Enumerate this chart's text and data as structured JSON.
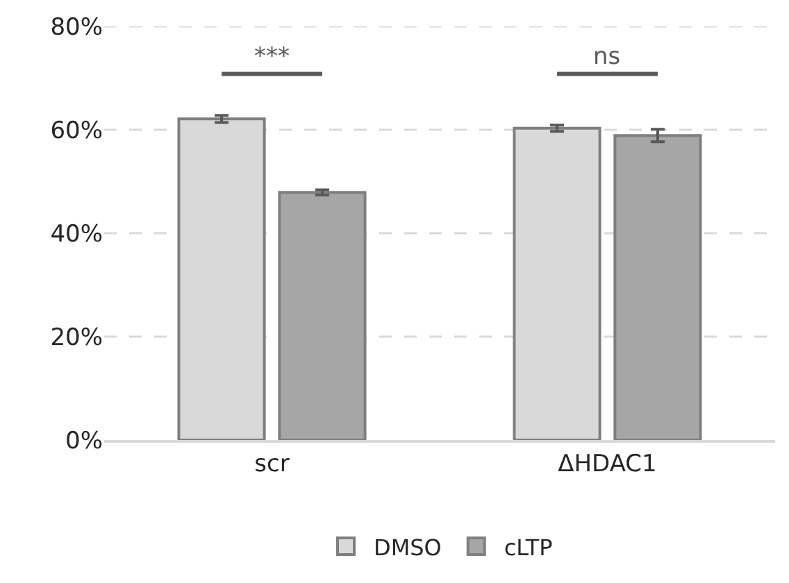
{
  "chart_data": {
    "type": "bar",
    "categories": [
      "scr",
      "ΔHDAC1"
    ],
    "series": [
      {
        "name": "DMSO",
        "color": "#d9d9d9",
        "values": [
          62.1,
          60.3
        ],
        "errors": [
          0.7,
          0.6
        ]
      },
      {
        "name": "cLTP",
        "color": "#a6a6a6",
        "values": [
          47.9,
          58.9
        ],
        "errors": [
          0.5,
          1.2
        ]
      }
    ],
    "ylim": [
      0,
      80
    ],
    "yticks": [
      {
        "value": 0,
        "label": "0%"
      },
      {
        "value": 20,
        "label": "20%"
      },
      {
        "value": 40,
        "label": "40%"
      },
      {
        "value": 60,
        "label": "60%"
      },
      {
        "value": 80,
        "label": "80%"
      }
    ],
    "grid": "y",
    "legend": "bottom",
    "annotations": [
      "***",
      "ns"
    ]
  }
}
